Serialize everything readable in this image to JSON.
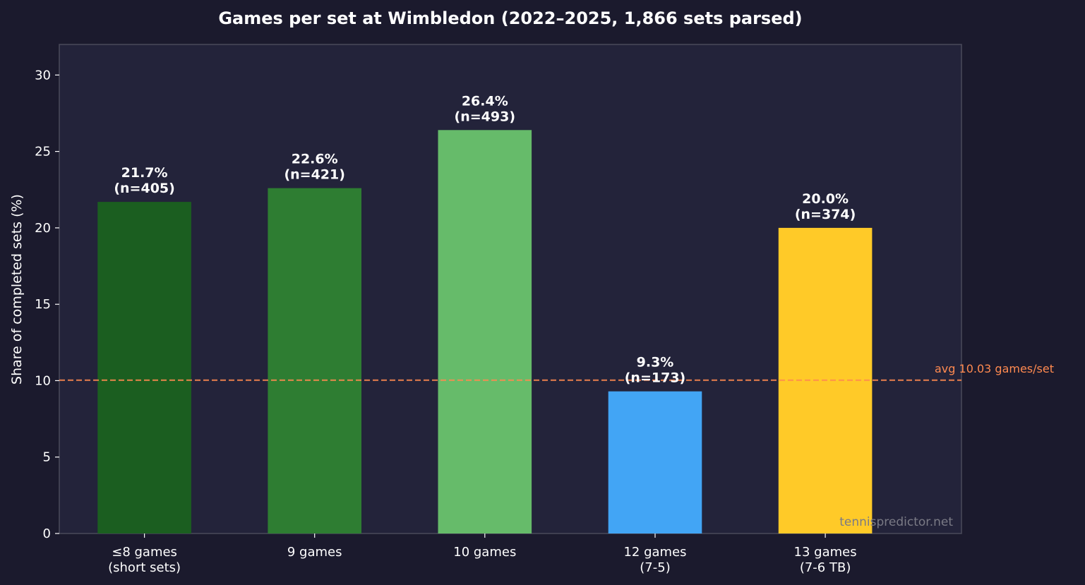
{
  "chart_data": {
    "type": "bar",
    "title": "Games per set at Wimbledon (2022–2025, 1,866 sets parsed)",
    "xlabel": "",
    "ylabel": "Share of completed sets (%)",
    "ylim": [
      0,
      32
    ],
    "yticks": [
      0,
      5,
      10,
      15,
      20,
      25,
      30
    ],
    "categories": [
      [
        "≤8 games",
        "(short sets)"
      ],
      [
        "9 games"
      ],
      [
        "10 games"
      ],
      [
        "12 games",
        "(7-5)"
      ],
      [
        "13 games",
        "(7-6 TB)"
      ]
    ],
    "values": [
      21.7,
      22.6,
      26.4,
      9.3,
      20.0
    ],
    "counts": [
      405,
      421,
      493,
      173,
      374
    ],
    "value_labels": [
      "21.7%",
      "22.6%",
      "26.4%",
      "9.3%",
      "20.0%"
    ],
    "count_labels": [
      "(n=405)",
      "(n=421)",
      "(n=493)",
      "(n=173)",
      "(n=374)"
    ],
    "colors": [
      "#1b5e20",
      "#2e7d32",
      "#66bb6a",
      "#42a5f5",
      "#ffca28"
    ],
    "reference_line": {
      "value": 10.03,
      "label": "avg 10.03 games/set",
      "color": "#ff8a50",
      "style": "dashed"
    },
    "grid": false,
    "legend": "none"
  },
  "watermark": "tennispredictor.net",
  "colors": {
    "background": "#1b1a2d",
    "plot_background": "#23233a",
    "axis": "#4a4a5a",
    "text": "#ffffff",
    "watermark": "#7a7a85"
  }
}
